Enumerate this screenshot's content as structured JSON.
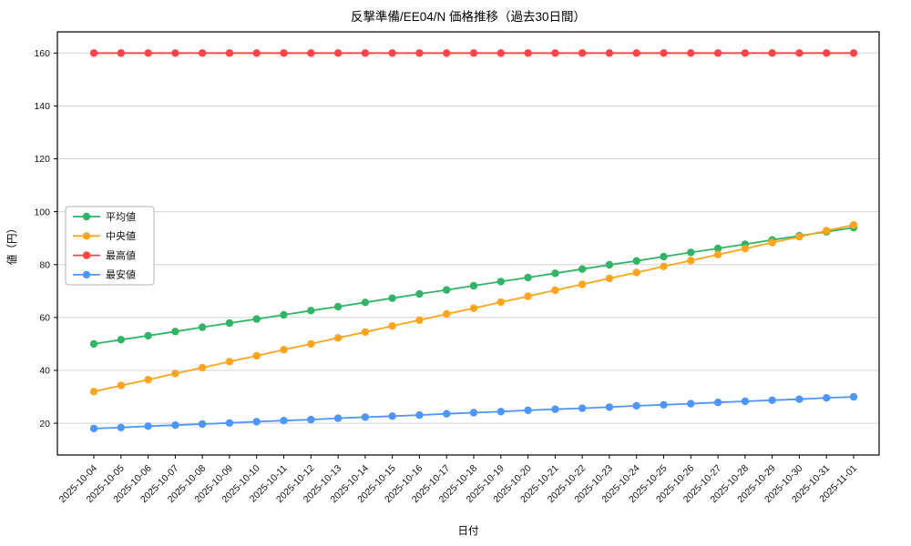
{
  "chart_data": {
    "type": "line",
    "title": "反撃準備/EE04/N 価格推移（過去30日間）",
    "xlabel": "日付",
    "ylabel": "値（円）",
    "grid": true,
    "legend_position": "center left",
    "ylim": [
      8,
      168
    ],
    "yticks": [
      20,
      40,
      60,
      80,
      100,
      120,
      140,
      160
    ],
    "categories": [
      "2025-10-04",
      "2025-10-05",
      "2025-10-06",
      "2025-10-07",
      "2025-10-08",
      "2025-10-09",
      "2025-10-10",
      "2025-10-11",
      "2025-10-12",
      "2025-10-13",
      "2025-10-14",
      "2025-10-15",
      "2025-10-16",
      "2025-10-17",
      "2025-10-18",
      "2025-10-19",
      "2025-10-20",
      "2025-10-21",
      "2025-10-22",
      "2025-10-23",
      "2025-10-24",
      "2025-10-25",
      "2025-10-26",
      "2025-10-27",
      "2025-10-28",
      "2025-10-29",
      "2025-10-30",
      "2025-10-31",
      "2025-11-01"
    ],
    "series": [
      {
        "name": "平均値",
        "color": "#30b566",
        "values": [
          50.0,
          51.6,
          53.1,
          54.7,
          56.3,
          57.9,
          59.4,
          61.0,
          62.6,
          64.1,
          65.7,
          67.3,
          68.9,
          70.4,
          72.0,
          73.6,
          75.1,
          76.7,
          78.3,
          79.9,
          81.4,
          83.0,
          84.6,
          86.1,
          87.7,
          89.3,
          90.9,
          92.4,
          94.0
        ]
      },
      {
        "name": "中央値",
        "color": "#ffa41b",
        "values": [
          32.0,
          34.3,
          36.5,
          38.8,
          41.0,
          43.3,
          45.5,
          47.8,
          50.0,
          52.3,
          54.5,
          56.8,
          59.0,
          61.3,
          63.5,
          65.8,
          68.0,
          70.3,
          72.5,
          74.8,
          77.0,
          79.3,
          81.5,
          83.8,
          86.0,
          88.3,
          90.5,
          92.8,
          95.0
        ]
      },
      {
        "name": "最高値",
        "color": "#ff4242",
        "values": [
          160,
          160,
          160,
          160,
          160,
          160,
          160,
          160,
          160,
          160,
          160,
          160,
          160,
          160,
          160,
          160,
          160,
          160,
          160,
          160,
          160,
          160,
          160,
          160,
          160,
          160,
          160,
          160,
          160
        ]
      },
      {
        "name": "最安値",
        "color": "#4d96ff",
        "values": [
          18.0,
          18.4,
          18.9,
          19.3,
          19.7,
          20.1,
          20.6,
          21.0,
          21.4,
          21.9,
          22.3,
          22.7,
          23.1,
          23.6,
          24.0,
          24.4,
          24.9,
          25.3,
          25.7,
          26.1,
          26.6,
          27.0,
          27.4,
          27.9,
          28.3,
          28.7,
          29.1,
          29.6,
          30.0
        ]
      }
    ]
  }
}
